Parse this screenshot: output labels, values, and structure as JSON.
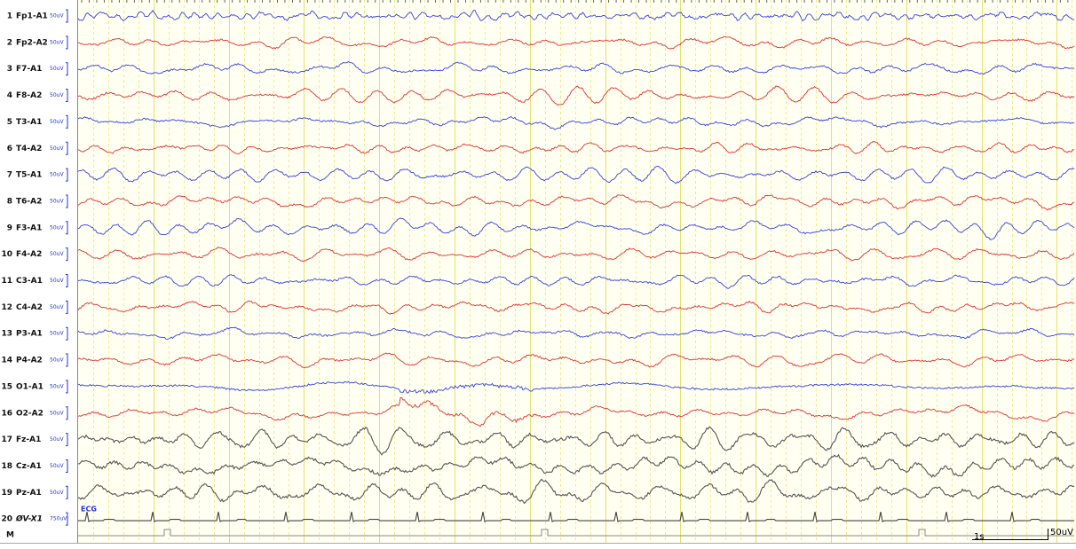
{
  "channels": [
    {
      "number": "1",
      "label": "Fp1-A1",
      "scale": "50uV",
      "color": "#3344dd"
    },
    {
      "number": "2",
      "label": "Fp2-A2",
      "scale": "50uV",
      "color": "#e03030"
    },
    {
      "number": "3",
      "label": "F7-A1",
      "scale": "50uV",
      "color": "#3344dd"
    },
    {
      "number": "4",
      "label": "F8-A2",
      "scale": "50uV",
      "color": "#e03030"
    },
    {
      "number": "5",
      "label": "T3-A1",
      "scale": "50uV",
      "color": "#3344dd"
    },
    {
      "number": "6",
      "label": "T4-A2",
      "scale": "50uV",
      "color": "#e03030"
    },
    {
      "number": "7",
      "label": "T5-A1",
      "scale": "50uV",
      "color": "#3344dd"
    },
    {
      "number": "8",
      "label": "T6-A2",
      "scale": "50uV",
      "color": "#e03030"
    },
    {
      "number": "9",
      "label": "F3-A1",
      "scale": "50uV",
      "color": "#3344dd"
    },
    {
      "number": "10",
      "label": "F4-A2",
      "scale": "50uV",
      "color": "#e03030"
    },
    {
      "number": "11",
      "label": "C3-A1",
      "scale": "50uV",
      "color": "#3344dd"
    },
    {
      "number": "12",
      "label": "C4-A2",
      "scale": "50uV",
      "color": "#e03030"
    },
    {
      "number": "13",
      "label": "P3-A1",
      "scale": "50uV",
      "color": "#3344dd"
    },
    {
      "number": "14",
      "label": "P4-A2",
      "scale": "50uV",
      "color": "#e03030"
    },
    {
      "number": "15",
      "label": "O1-A1",
      "scale": "50uV",
      "color": "#3344dd"
    },
    {
      "number": "16",
      "label": "O2-A2",
      "scale": "50uV",
      "color": "#e03030"
    },
    {
      "number": "17",
      "label": "Fz-A1",
      "scale": "50uV",
      "color": "#555555"
    },
    {
      "number": "18",
      "label": "Cz-A1",
      "scale": "50uV",
      "color": "#555555"
    },
    {
      "number": "19",
      "label": "Pz-A1",
      "scale": "50uV",
      "color": "#555555"
    },
    {
      "number": "20",
      "label": "ØV-X1",
      "scale": "750uV",
      "color": "#444444"
    }
  ],
  "ecg_label": "ECG",
  "marker_label": "M",
  "time_scale": "1s",
  "amplitude_scale": "50uV"
}
